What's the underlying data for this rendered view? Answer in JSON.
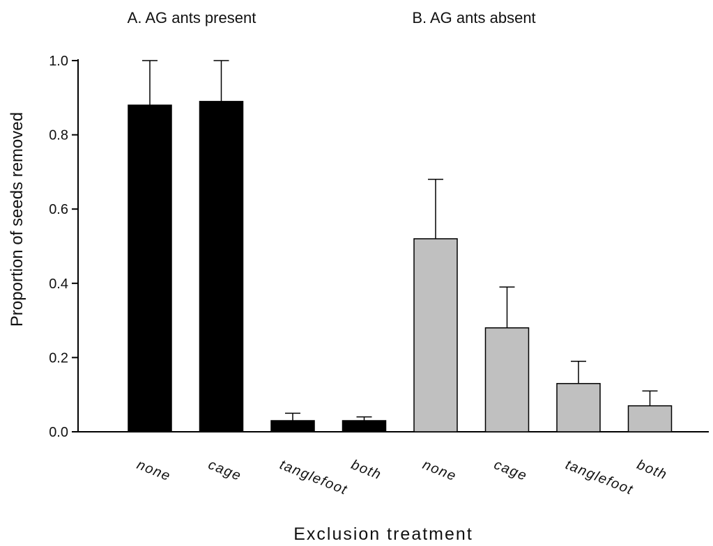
{
  "chart_data": {
    "type": "bar",
    "panel_titles": [
      "A. AG ants present",
      "B. AG ants absent"
    ],
    "xlabel": "Exclusion treatment",
    "ylabel": "Proportion of seeds removed",
    "ylim": [
      0,
      1.0
    ],
    "yticks": [
      "0.0",
      "0.2",
      "0.4",
      "0.6",
      "0.8",
      "1.0"
    ],
    "categories": [
      "none",
      "cage",
      "tanglefoot",
      "both",
      "none",
      "cage",
      "tanglefoot",
      "both"
    ],
    "groups": [
      "A. AG ants present",
      "A. AG ants present",
      "A. AG ants present",
      "A. AG ants present",
      "B. AG ants absent",
      "B. AG ants absent",
      "B. AG ants absent",
      "B. AG ants absent"
    ],
    "values": [
      0.88,
      0.89,
      0.03,
      0.03,
      0.52,
      0.28,
      0.13,
      0.07
    ],
    "error_upper": [
      1.0,
      1.0,
      0.05,
      0.04,
      0.68,
      0.39,
      0.19,
      0.11
    ],
    "colors": [
      "#000000",
      "#000000",
      "#000000",
      "#000000",
      "#c0c0c0",
      "#c0c0c0",
      "#c0c0c0",
      "#c0c0c0"
    ],
    "grid": false
  }
}
